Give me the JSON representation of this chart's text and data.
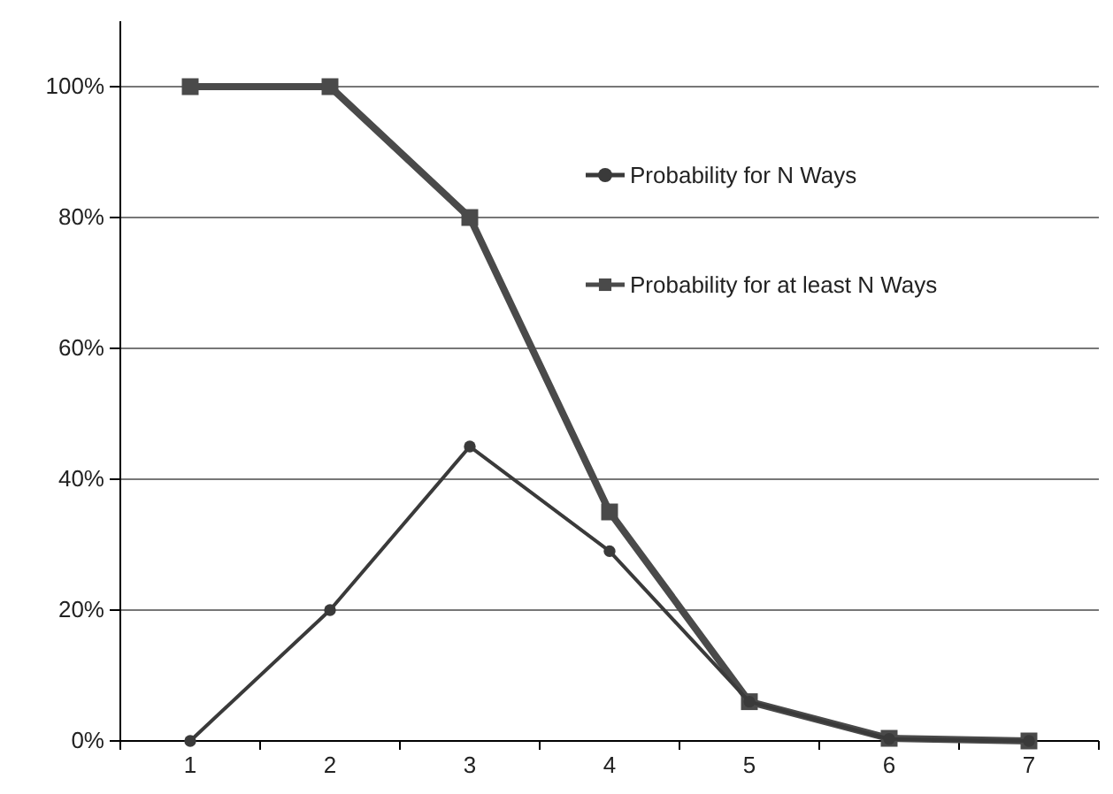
{
  "chart_data": {
    "type": "line",
    "categories": [
      "1",
      "2",
      "3",
      "4",
      "5",
      "6",
      "7"
    ],
    "series": [
      {
        "name": "Probability for N Ways",
        "color": "#3a3a3a",
        "marker": "circle",
        "values": [
          0,
          20,
          45,
          29,
          6,
          0.3,
          0
        ]
      },
      {
        "name": "Probability for at least N Ways",
        "color": "#4a4a4a",
        "marker": "square",
        "values": [
          100,
          100,
          80,
          35,
          6,
          0.4,
          0
        ]
      }
    ],
    "ylim": [
      0,
      110
    ],
    "yticks": [
      {
        "value": 0,
        "label": "0%"
      },
      {
        "value": 20,
        "label": "20%"
      },
      {
        "value": 40,
        "label": "40%"
      },
      {
        "value": 60,
        "label": "60%"
      },
      {
        "value": 80,
        "label": "80%"
      },
      {
        "value": 100,
        "label": "100%"
      }
    ],
    "grid": "y",
    "legend": "top right",
    "line_style": "solid"
  }
}
